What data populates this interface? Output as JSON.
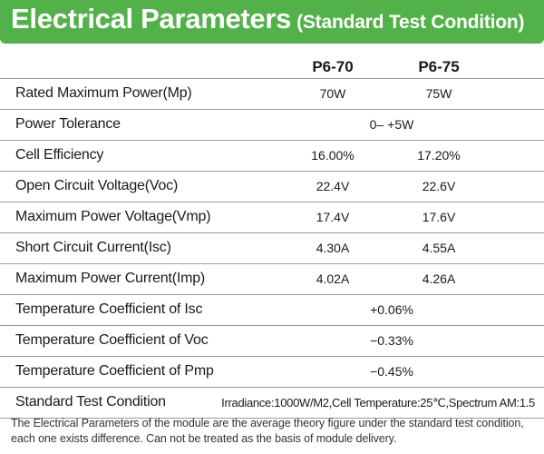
{
  "banner": {
    "title": "Electrical Parameters",
    "subtitle": "(Standard Test Condition)",
    "color": "#53b14a"
  },
  "table": {
    "columns": [
      "P6-70",
      "P6-75"
    ],
    "rows": [
      {
        "label": "Rated Maximum Power(Mp)",
        "values": [
          "70W",
          "75W"
        ]
      },
      {
        "label": "Power Tolerance",
        "shared": "0– +5W"
      },
      {
        "label": "Cell Efficiency",
        "values": [
          "16.00%",
          "17.20%"
        ]
      },
      {
        "label": "Open Circuit Voltage(Voc)",
        "values": [
          "22.4V",
          "22.6V"
        ]
      },
      {
        "label": "Maximum Power Voltage(Vmp)",
        "values": [
          "17.4V",
          "17.6V"
        ]
      },
      {
        "label": "Short Circuit Current(Isc)",
        "values": [
          "4.30A",
          "4.55A"
        ]
      },
      {
        "label": "Maximum Power Current(Imp)",
        "values": [
          "4.02A",
          "4.26A"
        ]
      },
      {
        "label": "Temperature Coefficient of Isc",
        "shared": "+0.06%"
      },
      {
        "label": "Temperature Coefficient of Voc",
        "shared": "−0.33%"
      },
      {
        "label": "Temperature Coefficient of Pmp",
        "shared": "−0.45%"
      },
      {
        "label": "Standard Test Condition",
        "condition": "Irradiance:1000W/M2,Cell Temperature:25℃,Spectrum AM:1.5"
      }
    ]
  },
  "footnote": "The Electrical Parameters of the module are the average theory figure under the standard test condition, each one exists difference. Can not be treated as the basis of module delivery."
}
